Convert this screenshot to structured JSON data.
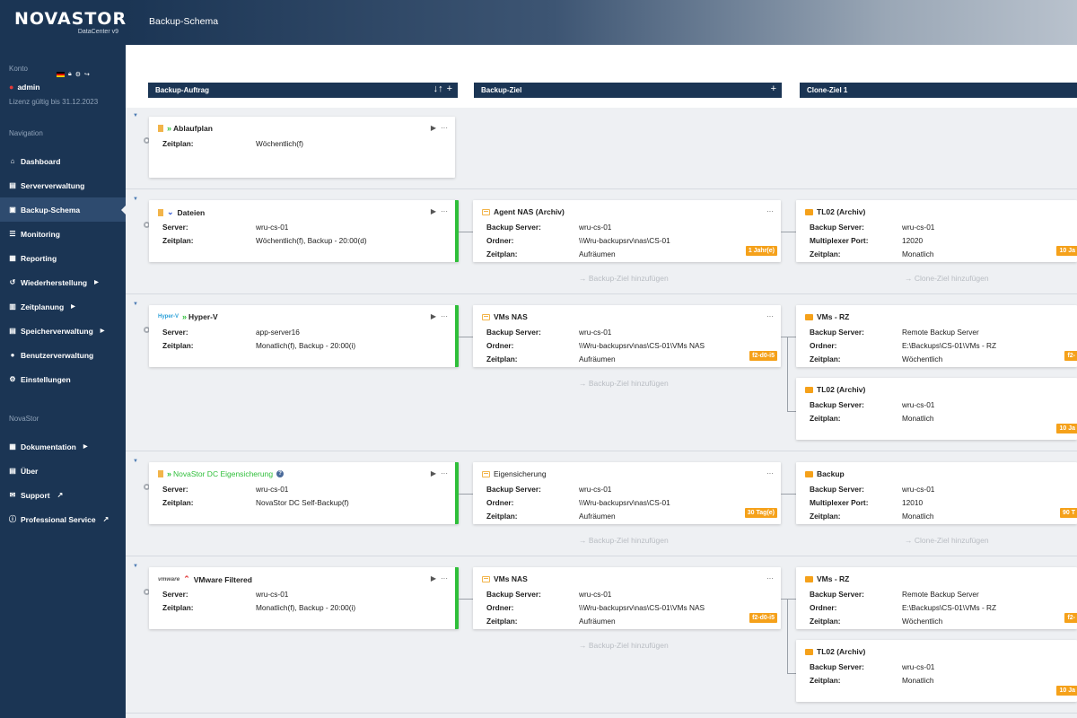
{
  "brand": {
    "name": "NOVASTOR",
    "edition": "DataCenter v9"
  },
  "header": {
    "title": "Backup-Schema"
  },
  "account": {
    "label": "Konto",
    "user": "admin",
    "license": "Lizenz gültig bis 31.12.2023"
  },
  "nav": {
    "label": "Navigation",
    "items": [
      {
        "label": "Dashboard",
        "icon": "home-icon"
      },
      {
        "label": "Serververwaltung",
        "icon": "server-icon"
      },
      {
        "label": "Backup-Schema",
        "icon": "schema-icon",
        "active": true
      },
      {
        "label": "Monitoring",
        "icon": "list-icon"
      },
      {
        "label": "Reporting",
        "icon": "report-icon"
      },
      {
        "label": "Wiederherstellung",
        "icon": "restore-icon",
        "submenu": true
      },
      {
        "label": "Zeitplanung",
        "icon": "calendar-icon",
        "submenu": true
      },
      {
        "label": "Speicherverwaltung",
        "icon": "storage-icon",
        "submenu": true
      },
      {
        "label": "Benutzerverwaltung",
        "icon": "user-icon"
      },
      {
        "label": "Einstellungen",
        "icon": "gear-icon"
      }
    ]
  },
  "novastor_nav": {
    "label": "NovaStor",
    "items": [
      {
        "label": "Dokumentation",
        "icon": "book-icon",
        "submenu": true
      },
      {
        "label": "Über",
        "icon": "info-icon"
      },
      {
        "label": "Support",
        "icon": "mail-icon",
        "external": true
      },
      {
        "label": "Professional Service",
        "icon": "info-circle-icon",
        "external": true
      }
    ]
  },
  "columns": {
    "backup_job": "Backup-Auftrag",
    "backup_target": "Backup-Ziel",
    "clone_target": "Clone-Ziel 1",
    "sort_icon": "↓↑",
    "add_icon": "+"
  },
  "labels": {
    "server": "Server:",
    "schedule": "Zeitplan:",
    "backup_server": "Backup Server:",
    "folder": "Ordner:",
    "multiplexer_port": "Multiplexer Port:",
    "add_backup_target": "→ Backup-Ziel hinzufügen",
    "add_clone_target": "→ Clone-Ziel hinzufügen",
    "play": "▶",
    "more": "···"
  },
  "rows": [
    {
      "job": {
        "title": "Ablaufplan",
        "schedule": "Wöchentlich(f)"
      }
    },
    {
      "job": {
        "title": "Dateien",
        "server": "wru-cs-01",
        "schedule": "Wöchentlich(f), Backup - 20:00(d)"
      },
      "target": {
        "title": "Agent NAS (Archiv)",
        "backup_server": "wru-cs-01",
        "folder": "\\\\Wru-backupsrv\\nas\\CS-01",
        "schedule": "Aufräumen",
        "badge": "1 Jahr(e)"
      },
      "clones": [
        {
          "title": "TL02 (Archiv)",
          "backup_server": "wru-cs-01",
          "multiplexer_port": "12020",
          "schedule": "Monatlich",
          "badge": "10 Ja"
        }
      ]
    },
    {
      "job": {
        "title": "Hyper-V",
        "logo": "Hyper-V",
        "server": "app-server16",
        "schedule": "Monatlich(f), Backup - 20:00(i)"
      },
      "target": {
        "title": "VMs NAS",
        "backup_server": "wru-cs-01",
        "folder": "\\\\Wru-backupsrv\\nas\\CS-01\\VMs NAS",
        "schedule": "Aufräumen",
        "badge": "f2-d0-i5"
      },
      "clones": [
        {
          "title": "VMs - RZ",
          "backup_server": "Remote Backup Server",
          "folder": "E:\\Backups\\CS-01\\VMs - RZ",
          "schedule": "Wöchentlich",
          "badge": "f2-"
        },
        {
          "title": "TL02 (Archiv)",
          "backup_server": "wru-cs-01",
          "schedule": "Monatlich",
          "badge": "10 Ja"
        }
      ]
    },
    {
      "job": {
        "title": "NovaStor DC Eigensicherung",
        "help": "?",
        "server": "wru-cs-01",
        "schedule": "NovaStor DC Self-Backup(f)"
      },
      "target": {
        "title": "Eigensicherung",
        "backup_server": "wru-cs-01",
        "folder": "\\\\Wru-backupsrv\\nas\\CS-01",
        "schedule": "Aufräumen",
        "badge": "30 Tag(e)"
      },
      "clones": [
        {
          "title": "Backup",
          "backup_server": "wru-cs-01",
          "multiplexer_port": "12010",
          "schedule": "Monatlich",
          "badge": "90 T"
        }
      ]
    },
    {
      "job": {
        "title": "VMware Filtered",
        "logo": "vmware",
        "server": "wru-cs-01",
        "schedule": "Monatlich(f), Backup - 20:00(i)"
      },
      "target": {
        "title": "VMs NAS",
        "backup_server": "wru-cs-01",
        "folder": "\\\\Wru-backupsrv\\nas\\CS-01\\VMs NAS",
        "schedule": "Aufräumen",
        "badge": "f2-d0-i5"
      },
      "clones": [
        {
          "title": "VMs - RZ",
          "backup_server": "Remote Backup Server",
          "folder": "E:\\Backups\\CS-01\\VMs - RZ",
          "schedule": "Wöchentlich",
          "badge": "f2-"
        },
        {
          "title": "TL02 (Archiv)",
          "backup_server": "wru-cs-01",
          "schedule": "Monatlich",
          "badge": "10 Ja"
        }
      ]
    }
  ]
}
